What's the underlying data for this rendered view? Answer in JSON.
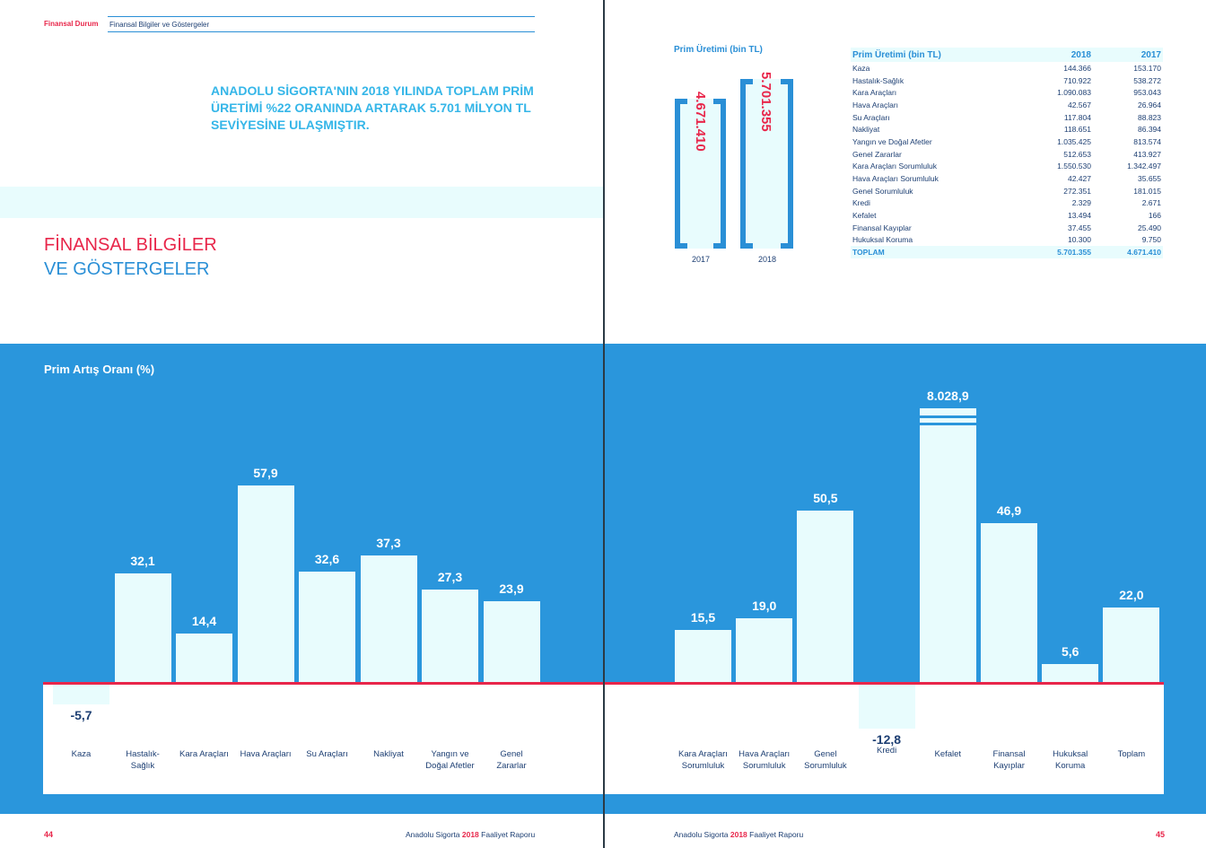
{
  "header": {
    "section": "Finansal Durum",
    "subsection": "Finansal Bilgiler ve Göstergeler"
  },
  "headline": "ANADOLU SİGORTA'NIN 2018 YILINDA TOPLAM PRİM ÜRETİMİ %22 ORANINDA ARTARAK 5.701 MİLYON TL SEVİYESİNE ULAŞMIŞTIR.",
  "title": {
    "line1": "FİNANSAL BİLGİLER",
    "line2": "VE GÖSTERGELER"
  },
  "bracket_chart": {
    "title": "Prim Üretimi (bin TL)",
    "items": [
      {
        "year": "2017",
        "value": "4.671.410"
      },
      {
        "year": "2018",
        "value": "5.701.355"
      }
    ]
  },
  "table": {
    "headers": [
      "Prim Üretimi (bin TL)",
      "2018",
      "2017"
    ],
    "rows": [
      [
        "Kaza",
        "144.366",
        "153.170"
      ],
      [
        "Hastalık-Sağlık",
        "710.922",
        "538.272"
      ],
      [
        "Kara Araçları",
        "1.090.083",
        "953.043"
      ],
      [
        "Hava Araçları",
        "42.567",
        "26.964"
      ],
      [
        "Su Araçları",
        "117.804",
        "88.823"
      ],
      [
        "Nakliyat",
        "118.651",
        "86.394"
      ],
      [
        "Yangın ve Doğal Afetler",
        "1.035.425",
        "813.574"
      ],
      [
        "Genel Zararlar",
        "512.653",
        "413.927"
      ],
      [
        "Kara Araçları Sorumluluk",
        "1.550.530",
        "1.342.497"
      ],
      [
        "Hava Araçları Sorumluluk",
        "42.427",
        "35.655"
      ],
      [
        "Genel Sorumluluk",
        "272.351",
        "181.015"
      ],
      [
        "Kredi",
        "2.329",
        "2.671"
      ],
      [
        "Kefalet",
        "13.494",
        "166"
      ],
      [
        "Finansal Kayıplar",
        "37.455",
        "25.490"
      ],
      [
        "Hukuksal Koruma",
        "10.300",
        "9.750"
      ]
    ],
    "total": [
      "TOPLAM",
      "5.701.355",
      "4.671.410"
    ]
  },
  "chart_data": {
    "type": "bar",
    "title": "Prim Artış Oranı (%)",
    "categories": [
      "Kaza",
      "Hastalık-Sağlık",
      "Kara Araçları",
      "Hava Araçları",
      "Su Araçları",
      "Nakliyat",
      "Yangın ve Doğal Afetler",
      "Genel Zararlar",
      "Kara Araçları Sorumluluk",
      "Hava Araçları Sorumluluk",
      "Genel Sorumluluk",
      "Kredi",
      "Kefalet",
      "Finansal Kayıplar",
      "Hukuksal Koruma",
      "Toplam"
    ],
    "labels": [
      [
        "Kaza"
      ],
      [
        "Hastalık-",
        "Sağlık"
      ],
      [
        "Kara Araçları"
      ],
      [
        "Hava Araçları"
      ],
      [
        "Su Araçları"
      ],
      [
        "Nakliyat"
      ],
      [
        "Yangın ve",
        "Doğal Afetler"
      ],
      [
        "Genel",
        "Zararlar"
      ],
      [
        "Kara Araçları",
        "Sorumluluk"
      ],
      [
        "Hava Araçları",
        "Sorumluluk"
      ],
      [
        "Genel",
        "Sorumluluk"
      ],
      [
        "Kredi"
      ],
      [
        "Kefalet"
      ],
      [
        "Finansal",
        "Kayıplar"
      ],
      [
        "Hukuksal",
        "Koruma"
      ],
      [
        "Toplam"
      ]
    ],
    "values": [
      -5.7,
      32.1,
      14.4,
      57.9,
      32.6,
      37.3,
      27.3,
      23.9,
      15.5,
      19.0,
      50.5,
      -12.8,
      8028.9,
      46.9,
      5.6,
      22.0
    ],
    "value_labels": [
      "-5,7",
      "32,1",
      "14,4",
      "57,9",
      "32,6",
      "37,3",
      "27,3",
      "23,9",
      "15,5",
      "19,0",
      "50,5",
      "-12,8",
      "8.028,9",
      "46,9",
      "5,6",
      "22,0"
    ],
    "broken_axis_bar": "Kefalet",
    "colors": {
      "bar": "#e8fcfd",
      "background": "#2a96dc",
      "zero_line": "#e8264a"
    }
  },
  "footer": {
    "left_page": "44",
    "right_page": "45",
    "report_prefix": "Anadolu Sigorta",
    "report_year": "2018",
    "report_suffix": "Faaliyet Raporu"
  }
}
